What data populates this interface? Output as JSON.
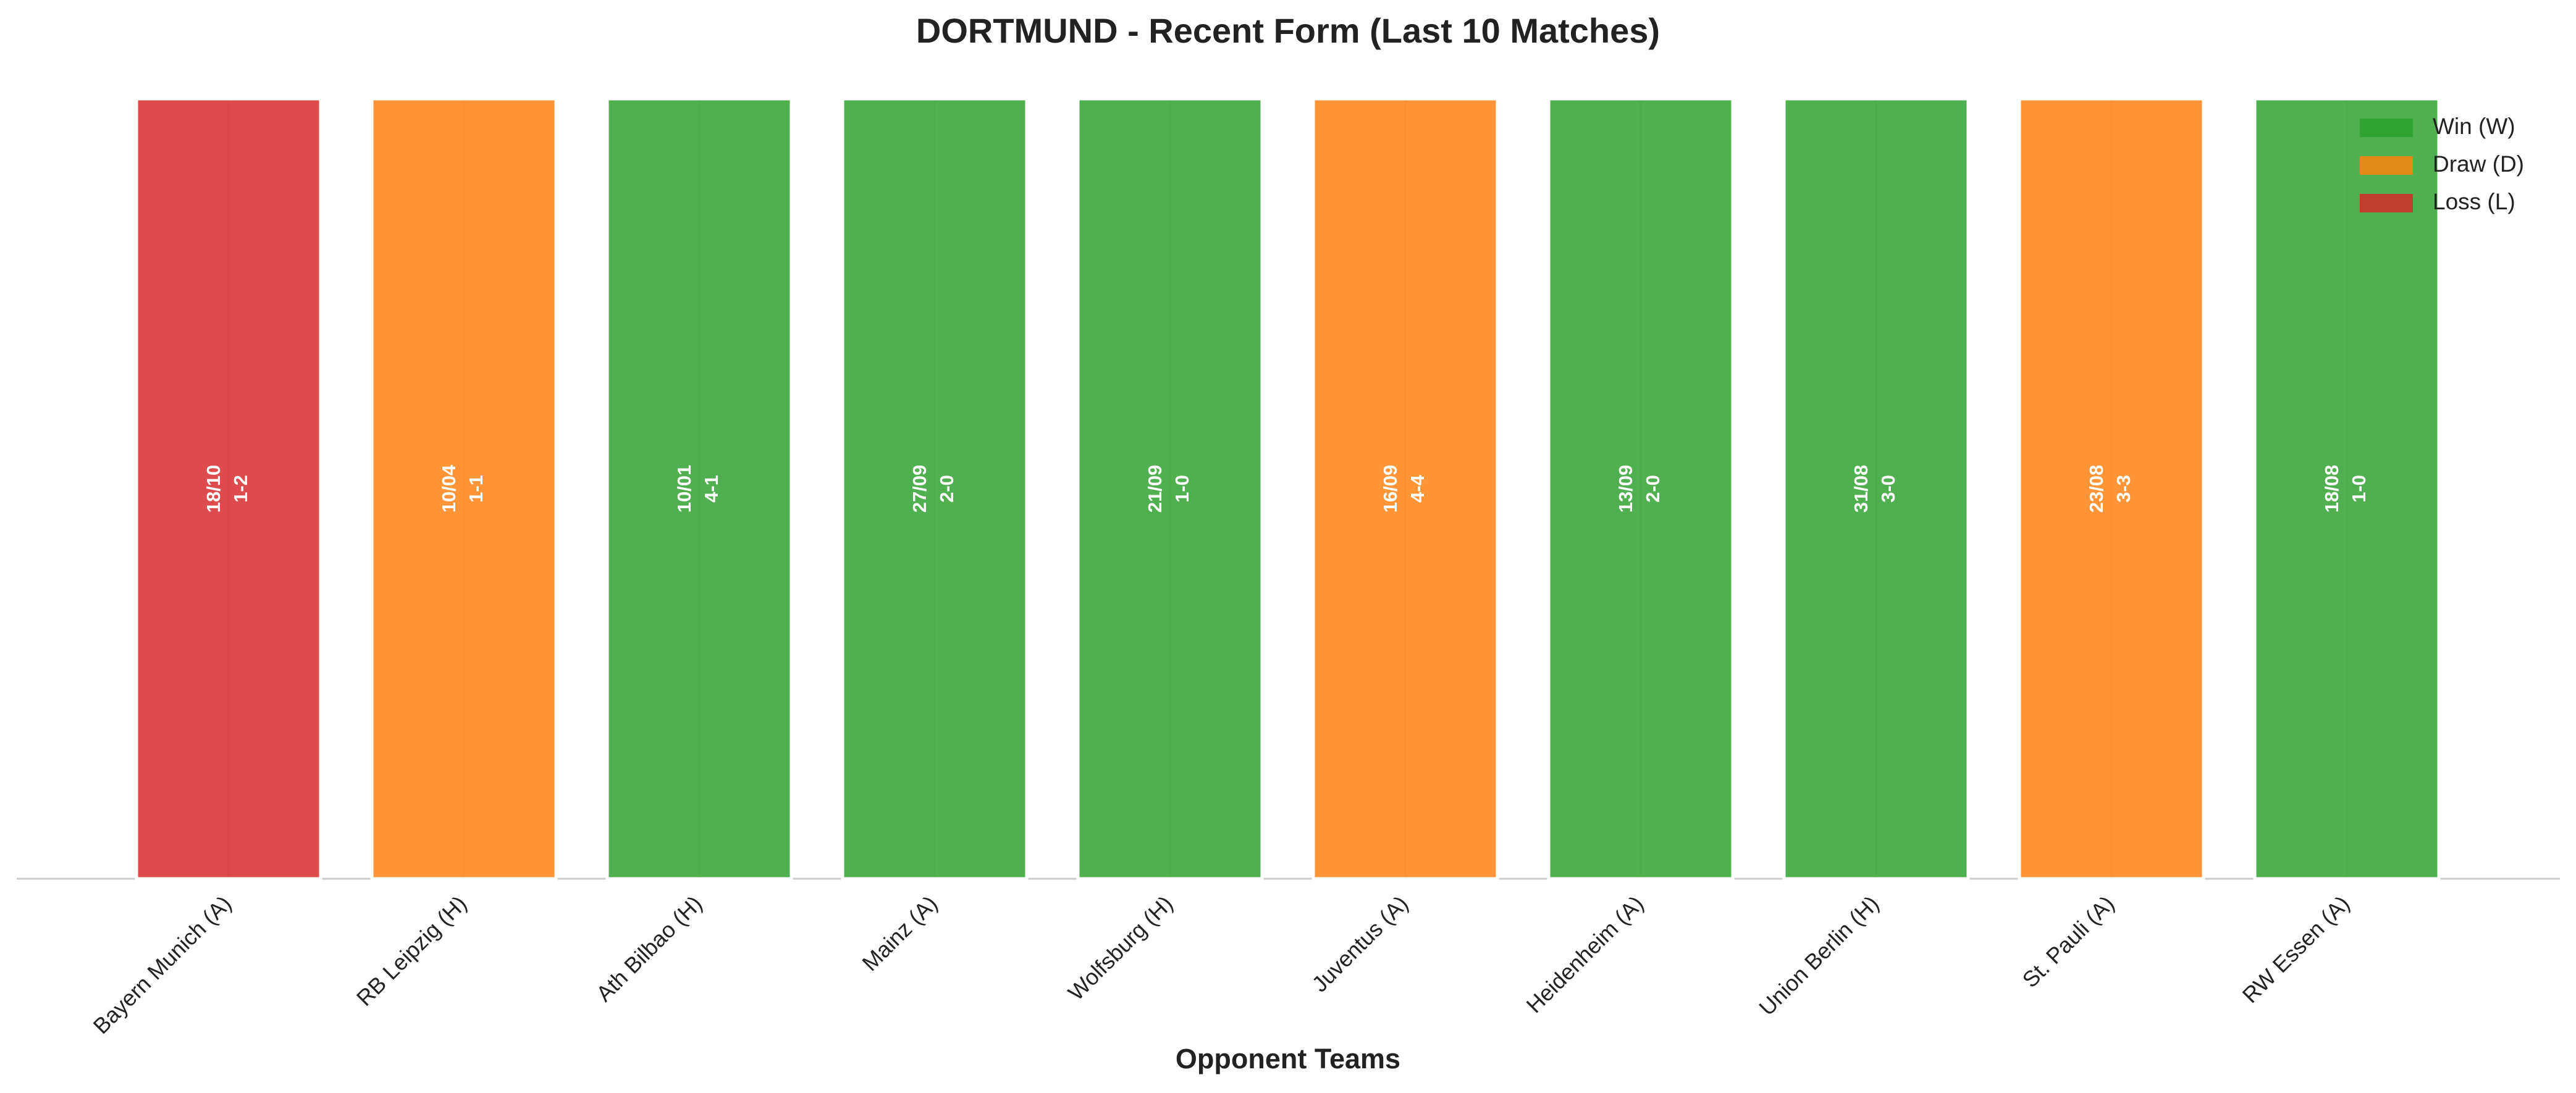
{
  "chart_data": {
    "type": "bar",
    "title": "DORTMUND - Recent Form (Last 10 Matches)",
    "x_label": "Opponent Teams",
    "categories": [
      "Bayern Munich (A)",
      "RB Leipzig (H)",
      "Ath Bilbao (H)",
      "Mainz (A)",
      "Wolfsburg (H)",
      "Juventus (A)",
      "Heidenheim (A)",
      "Union Berlin (H)",
      "St. Pauli (A)",
      "RW Essen (A)"
    ],
    "dates": [
      "18/10",
      "10/04",
      "10/01",
      "27/09",
      "21/09",
      "16/09",
      "13/09",
      "31/08",
      "23/08",
      "18/08"
    ],
    "scores": [
      "1-2",
      "1-1",
      "4-1",
      "2-0",
      "1-0",
      "4-4",
      "2-0",
      "3-0",
      "3-3",
      "1-0"
    ],
    "series": [
      {
        "name": "Win (W)",
        "color": "#2ca02c",
        "values": [
          null,
          null,
          1,
          1,
          1,
          null,
          1,
          1,
          null,
          1
        ]
      },
      {
        "name": "Draw (D)",
        "color": "#ff7f0e",
        "values": [
          null,
          1,
          null,
          null,
          null,
          1,
          null,
          null,
          1,
          null
        ]
      },
      {
        "name": "Loss (L)",
        "color": "#d62728",
        "values": [
          1,
          null,
          null,
          null,
          null,
          null,
          null,
          null,
          null,
          null
        ]
      }
    ],
    "ylim": [
      0,
      1
    ],
    "alpha": 0.83,
    "grid": true,
    "legend": "upper right"
  }
}
